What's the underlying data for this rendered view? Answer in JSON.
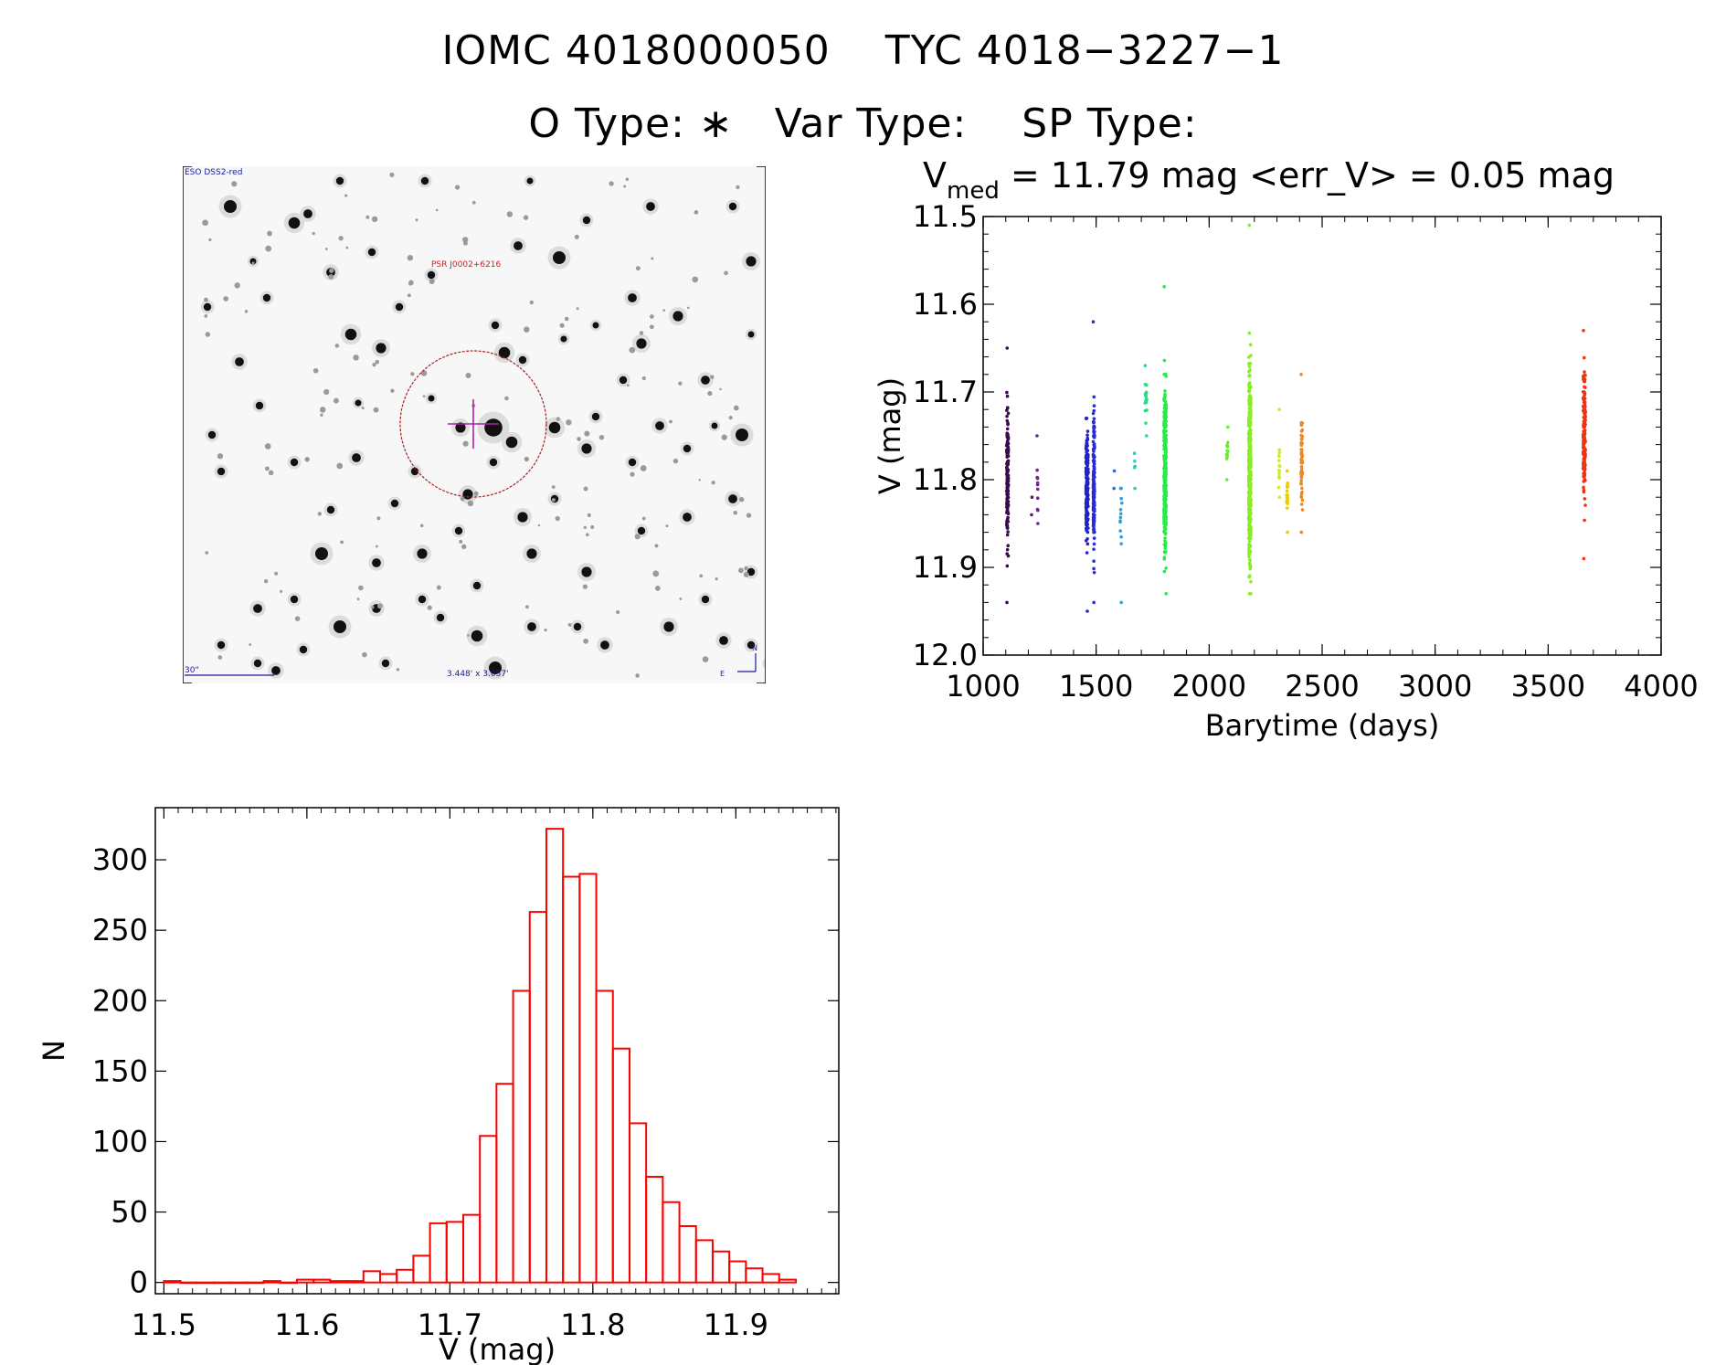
{
  "header": {
    "title": "IOMC 4018000050    TYC 4018−3227−1",
    "subtitle": "O Type: ∗   Var Type:    SP Type:"
  },
  "finder": {
    "survey_label": "ESO DSS2-red",
    "target_label": "PSR J0002+6216",
    "scale_label": "30\"",
    "fov_label": "3.448' x 3.057'",
    "north_label": "N",
    "east_label": "E",
    "colors": {
      "frame": "#000000",
      "circle": "#aa2222",
      "marker": "#aa22aa",
      "label_red": "#cc2222",
      "label_blue": "#1a1aa0"
    }
  },
  "light_curve": {
    "stats_v": "V",
    "stats_sub": "med",
    "stats_rest": " = 11.79 mag <err_V> = 0.05 mag",
    "chart_data": {
      "type": "scatter",
      "xlabel": "Barytime (days)",
      "ylabel": "V (mag)",
      "xlim": [
        1000,
        4000
      ],
      "ylim": [
        12.0,
        11.5
      ],
      "y_inverted": true,
      "xticks": [
        1000,
        1500,
        2000,
        2500,
        3000,
        3500,
        4000
      ],
      "yticks": [
        11.5,
        11.6,
        11.7,
        11.8,
        11.9,
        12.0
      ],
      "ytick_labels": [
        "11.5",
        "11.6",
        "11.7",
        "11.8",
        "11.9",
        "12.0"
      ],
      "groups": [
        {
          "x": 1108,
          "spread": 8,
          "y_center": 11.8,
          "y_min": 11.65,
          "y_max": 11.94,
          "n": 140,
          "color": "#3a0a4a"
        },
        {
          "x": 1215,
          "spread": 4,
          "y_center": 11.83,
          "y_min": 11.82,
          "y_max": 11.84,
          "n": 2,
          "color": "#5a1a6a"
        },
        {
          "x": 1240,
          "spread": 5,
          "y_center": 11.8,
          "y_min": 11.75,
          "y_max": 11.85,
          "n": 12,
          "color": "#6a2a8a"
        },
        {
          "x": 1460,
          "spread": 10,
          "y_center": 11.81,
          "y_min": 11.73,
          "y_max": 11.95,
          "n": 180,
          "color": "#2222cc"
        },
        {
          "x": 1490,
          "spread": 6,
          "y_center": 11.8,
          "y_min": 11.62,
          "y_max": 11.94,
          "n": 160,
          "color": "#2a2ad8"
        },
        {
          "x": 1580,
          "spread": 4,
          "y_center": 11.8,
          "y_min": 11.79,
          "y_max": 11.81,
          "n": 2,
          "color": "#2a6ad8"
        },
        {
          "x": 1610,
          "spread": 8,
          "y_center": 11.83,
          "y_min": 11.81,
          "y_max": 11.94,
          "n": 14,
          "color": "#2aa0e0"
        },
        {
          "x": 1670,
          "spread": 4,
          "y_center": 11.79,
          "y_min": 11.77,
          "y_max": 11.81,
          "n": 5,
          "color": "#22d0c0"
        },
        {
          "x": 1720,
          "spread": 8,
          "y_center": 11.71,
          "y_min": 11.67,
          "y_max": 11.75,
          "n": 18,
          "color": "#22e080"
        },
        {
          "x": 1805,
          "spread": 10,
          "y_center": 11.79,
          "y_min": 11.58,
          "y_max": 11.93,
          "n": 320,
          "color": "#22ee44"
        },
        {
          "x": 2080,
          "spread": 6,
          "y_center": 11.77,
          "y_min": 11.74,
          "y_max": 11.8,
          "n": 12,
          "color": "#66ee22"
        },
        {
          "x": 2180,
          "spread": 10,
          "y_center": 11.79,
          "y_min": 11.51,
          "y_max": 11.93,
          "n": 380,
          "color": "#88ee22"
        },
        {
          "x": 2310,
          "spread": 6,
          "y_center": 11.78,
          "y_min": 11.72,
          "y_max": 11.82,
          "n": 16,
          "color": "#ccee22"
        },
        {
          "x": 2345,
          "spread": 6,
          "y_center": 11.82,
          "y_min": 11.79,
          "y_max": 11.86,
          "n": 28,
          "color": "#eecc00"
        },
        {
          "x": 2410,
          "spread": 6,
          "y_center": 11.78,
          "y_min": 11.68,
          "y_max": 11.86,
          "n": 60,
          "color": "#ee8822"
        },
        {
          "x": 3660,
          "spread": 10,
          "y_center": 11.75,
          "y_min": 11.63,
          "y_max": 11.89,
          "n": 170,
          "color": "#ee3311"
        }
      ]
    }
  },
  "histogram": {
    "chart_data": {
      "type": "bar",
      "xlabel": "V (mag)",
      "ylabel": "N",
      "xlim": [
        11.494,
        11.972
      ],
      "ylim": [
        -8,
        337
      ],
      "xticks": [
        11.5,
        11.6,
        11.7,
        11.8,
        11.9
      ],
      "xtick_labels": [
        "11.5",
        "11.6",
        "11.7",
        "11.8",
        "11.9"
      ],
      "yticks": [
        0,
        50,
        100,
        150,
        200,
        250,
        300
      ],
      "bin_start": 11.5,
      "bin_width": 0.01163,
      "values": [
        1,
        0,
        0,
        0,
        0,
        0,
        1,
        0,
        2,
        2,
        1,
        1,
        8,
        6,
        9,
        19,
        42,
        43,
        48,
        104,
        141,
        207,
        263,
        322,
        288,
        290,
        207,
        166,
        113,
        75,
        57,
        40,
        30,
        22,
        15,
        10,
        6,
        2
      ],
      "color": "#ff0000"
    }
  }
}
